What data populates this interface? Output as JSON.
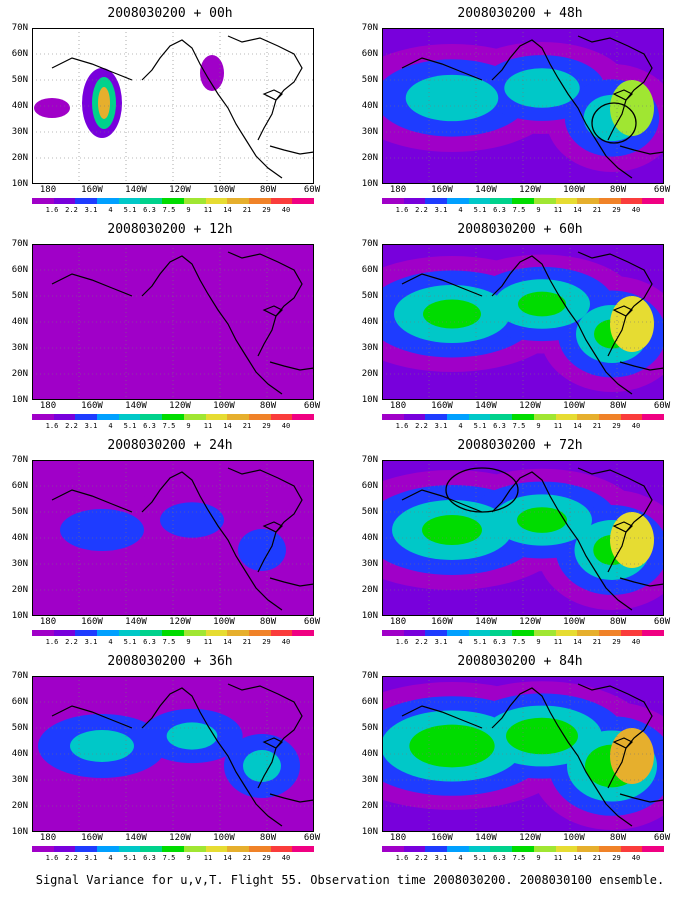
{
  "panels": [
    {
      "title": "2008030200 + 00h",
      "col": 0,
      "row": 0,
      "intensity": 0.0,
      "ring": false
    },
    {
      "title": "2008030200 + 48h",
      "col": 1,
      "row": 0,
      "intensity": 0.6,
      "ring": true
    },
    {
      "title": "2008030200 + 12h",
      "col": 0,
      "row": 1,
      "intensity": 0.15,
      "ring": false
    },
    {
      "title": "2008030200 + 60h",
      "col": 1,
      "row": 1,
      "intensity": 0.7,
      "ring": false
    },
    {
      "title": "2008030200 + 24h",
      "col": 0,
      "row": 2,
      "intensity": 0.3,
      "ring": false
    },
    {
      "title": "2008030200 + 72h",
      "col": 1,
      "row": 2,
      "intensity": 0.75,
      "ring": true
    },
    {
      "title": "2008030200 + 36h",
      "col": 0,
      "row": 3,
      "intensity": 0.45,
      "ring": false
    },
    {
      "title": "2008030200 + 84h",
      "col": 1,
      "row": 3,
      "intensity": 0.85,
      "ring": false
    }
  ],
  "lat_labels": [
    "70N",
    "60N",
    "50N",
    "40N",
    "30N",
    "20N",
    "10N"
  ],
  "lon_labels": [
    "180",
    "160W",
    "140W",
    "120W",
    "100W",
    "80W",
    "60W"
  ],
  "colorbar": {
    "labels": [
      "1.6",
      "2.2",
      "3.1",
      "4",
      "5.1",
      "6.3",
      "7.5",
      "9",
      "11",
      "14",
      "21",
      "29",
      "40"
    ],
    "colors": [
      "#a000c8",
      "#7800dc",
      "#1e3cff",
      "#00a0ff",
      "#00c8c8",
      "#00d28c",
      "#00dc00",
      "#a0e632",
      "#e6dc32",
      "#e6af2d",
      "#f08228",
      "#fa3c3c",
      "#f00082"
    ]
  },
  "caption": "Signal Variance for u,v,T. Flight 55. Observation time 2008030200. 2008030100 ensemble."
}
